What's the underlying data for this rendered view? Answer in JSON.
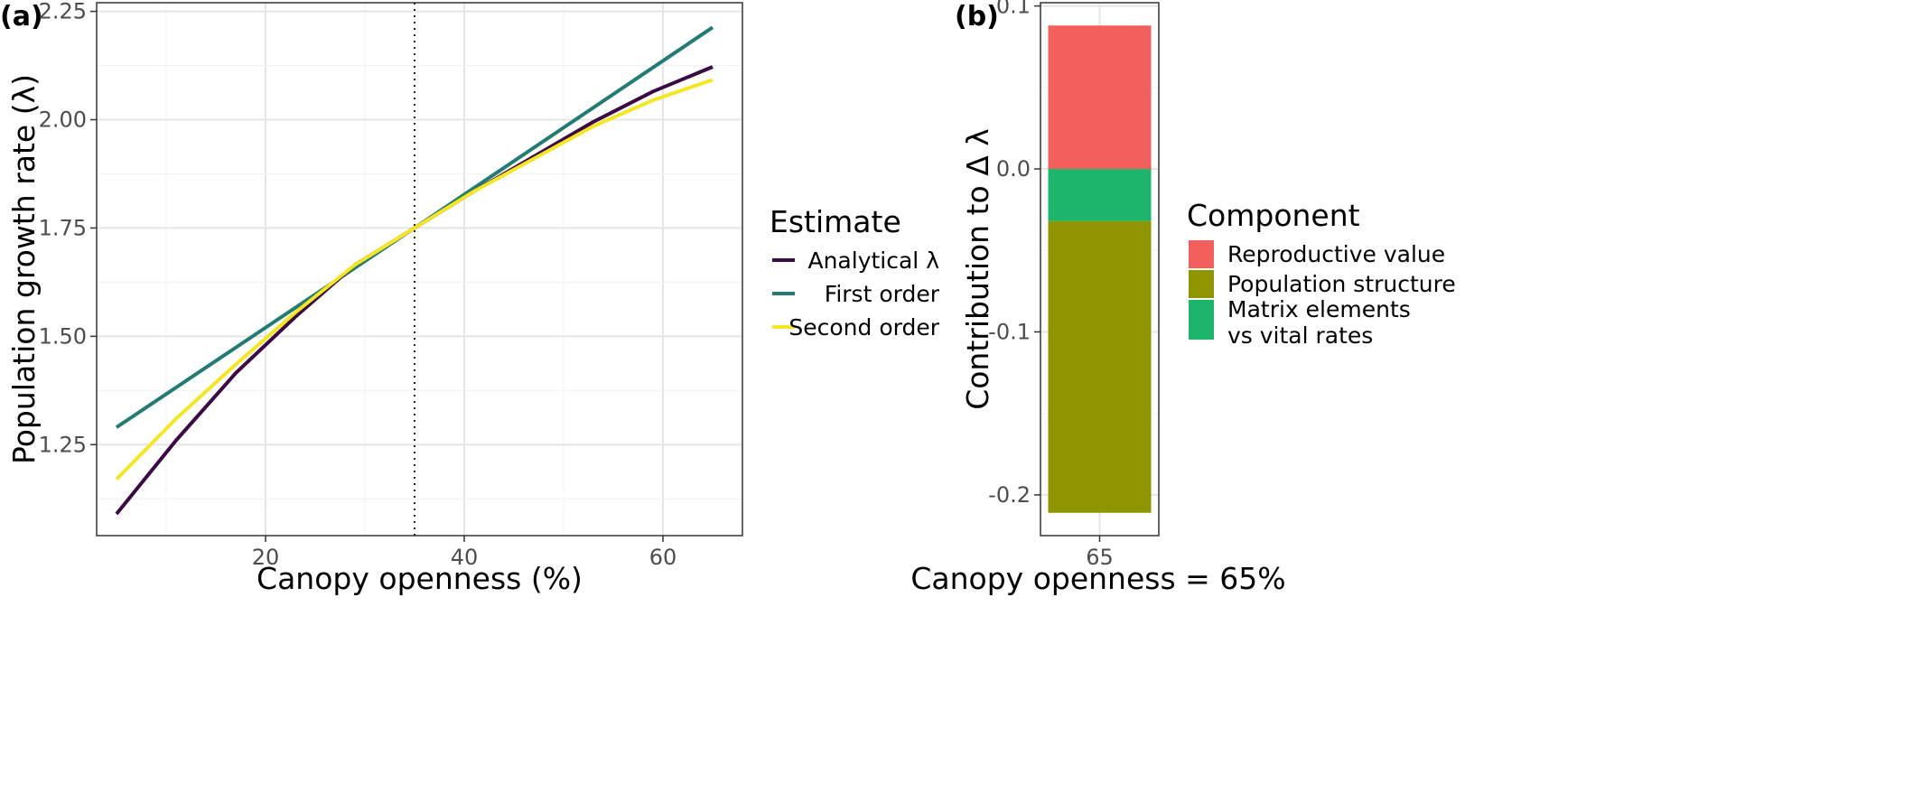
{
  "chart_data": [
    {
      "panel_label": "(a)",
      "type": "line",
      "xlabel": "Canopy openness (%)",
      "ylabel": "Population growth rate (λ)",
      "xlim": [
        3,
        68
      ],
      "ylim": [
        1.04,
        2.27
      ],
      "x_ticks": [
        20,
        40,
        60
      ],
      "x_tick_labels": [
        "20",
        "40",
        "60"
      ],
      "y_ticks": [
        1.25,
        1.5,
        1.75,
        2.0,
        2.25
      ],
      "y_tick_labels": [
        "1.25",
        "1.50",
        "1.75",
        "2.00",
        "2.25"
      ],
      "grid": true,
      "reference_line": {
        "x": 35,
        "style": "dotted"
      },
      "legend": {
        "title": "Estimate",
        "position": "right"
      },
      "series": [
        {
          "name": "Analytical λ",
          "color": "#3b0a45",
          "x": [
            5,
            11,
            17,
            23,
            29,
            35,
            41,
            47,
            53,
            59,
            65
          ],
          "y": [
            1.09,
            1.26,
            1.415,
            1.545,
            1.665,
            1.75,
            1.835,
            1.915,
            1.995,
            2.065,
            2.122
          ]
        },
        {
          "name": "First order",
          "color": "#237b74",
          "x": [
            5,
            35,
            65
          ],
          "y": [
            1.29,
            1.75,
            2.213
          ]
        },
        {
          "name": "Second order",
          "color": "#f5e625",
          "x": [
            5,
            11,
            17,
            23,
            29,
            35,
            41,
            47,
            53,
            59,
            65
          ],
          "y": [
            1.17,
            1.31,
            1.435,
            1.555,
            1.665,
            1.75,
            1.835,
            1.91,
            1.985,
            2.045,
            2.092
          ]
        }
      ]
    },
    {
      "panel_label": "(b)",
      "type": "bar",
      "stacked": true,
      "xlabel": "Canopy openness = 65%",
      "ylabel": "Contribution to Δ λ",
      "categories": [
        "65"
      ],
      "ylim": [
        -0.225,
        0.102
      ],
      "y_ticks": [
        -0.2,
        -0.1,
        0.0,
        0.1
      ],
      "y_tick_labels": [
        "-0.2",
        "-0.1",
        "0.0",
        "0.1"
      ],
      "grid": true,
      "legend": {
        "title": "Component",
        "position": "right"
      },
      "series": [
        {
          "name": "Reproductive value",
          "color": "#f25f5c",
          "values": [
            0.088
          ]
        },
        {
          "name": "Population structure",
          "color": "#8f9500",
          "values": [
            -0.179
          ]
        },
        {
          "name": "Matrix elements vs vital rates",
          "color": "#1db56c",
          "values": [
            -0.032
          ]
        }
      ],
      "stack_order_negative": [
        "Matrix elements vs vital rates",
        "Population structure"
      ],
      "legend_entries": [
        {
          "series": "Reproductive value",
          "lines": [
            "Reproductive value"
          ]
        },
        {
          "series": "Population structure",
          "lines": [
            "Population structure"
          ]
        },
        {
          "series": "Matrix elements vs vital rates",
          "lines": [
            "Matrix elements",
            "vs vital rates"
          ]
        }
      ]
    }
  ]
}
